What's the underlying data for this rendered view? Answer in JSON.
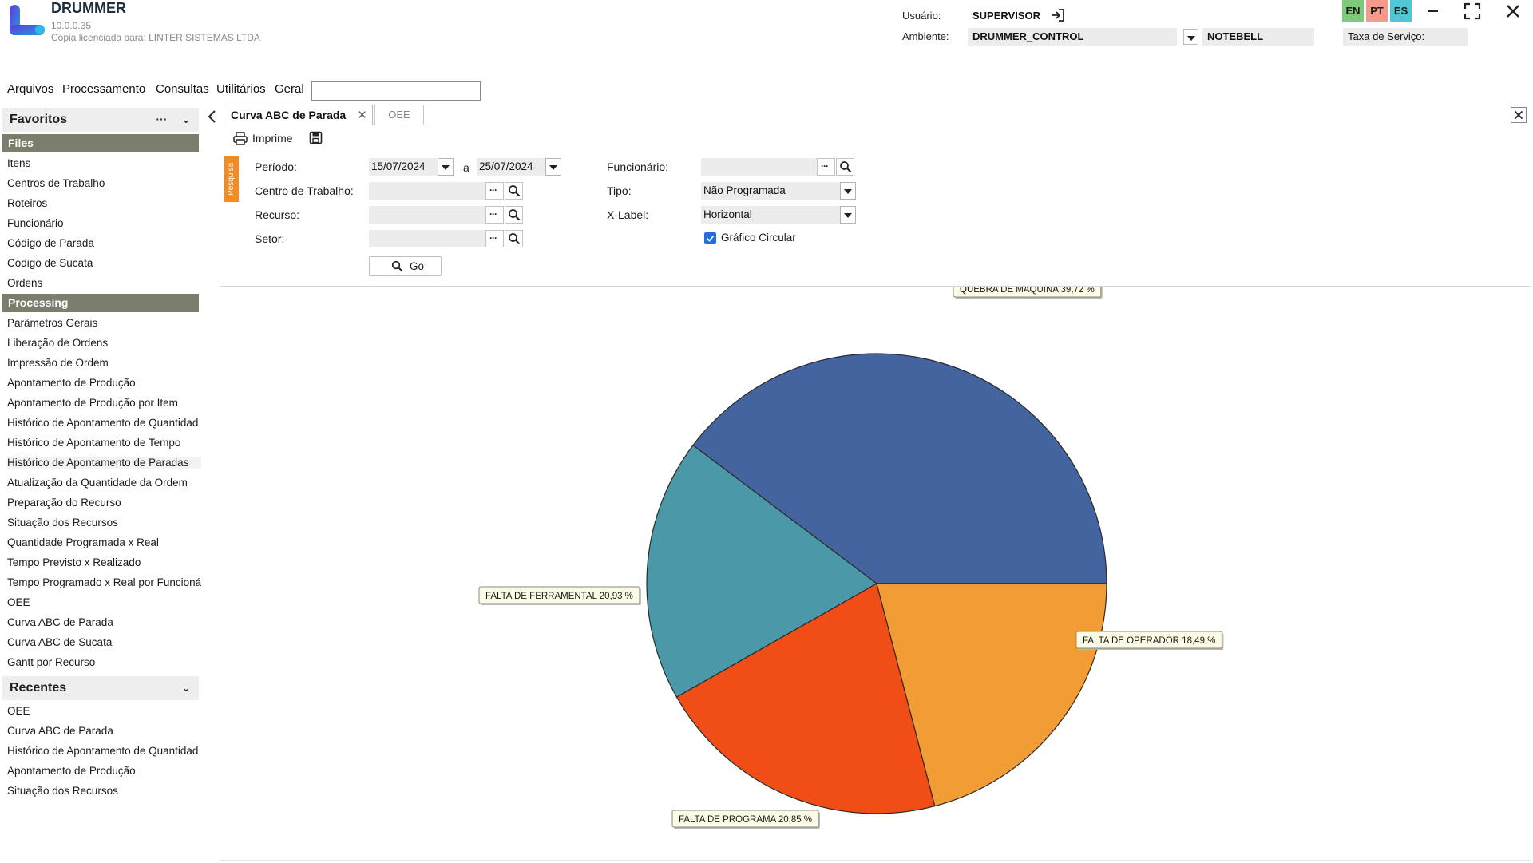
{
  "app": {
    "name": "DRUMMER",
    "version": "10.0.0.35",
    "license": "Cópia licenciada para: LINTER SISTEMAS LTDA"
  },
  "header": {
    "user_label": "Usuário:",
    "user_value": "SUPERVISOR",
    "env_label": "Ambiente:",
    "env_value": "DRUMMER_CONTROL",
    "env_server": "NOTEBELL",
    "service_fee_label": "Taxa de Serviço:",
    "languages": [
      "EN",
      "PT",
      "ES"
    ]
  },
  "menu": {
    "items": [
      "Arquivos",
      "Processamento",
      "Consultas",
      "Utilitários",
      "Geral"
    ],
    "search_value": ""
  },
  "sidebar": {
    "favorites_title": "Favoritos",
    "favorites_more": "···",
    "files_group": "Files",
    "files_items": [
      "Itens",
      "Centros de Trabalho",
      "Roteiros",
      "Funcionário",
      "Código de Parada",
      "Código de Sucata",
      "Ordens"
    ],
    "processing_group": "Processing",
    "processing_items": [
      "Parâmetros Gerais",
      "Liberação de Ordens",
      "Impressão de Ordem",
      "Apontamento de Produção",
      "Apontamento de Produção por Item",
      "Histórico de Apontamento de Quantidad",
      "Histórico de Apontamento de Tempo",
      "Histórico de Apontamento de Paradas",
      "Atualização da Quantidade da Ordem",
      "Preparação do Recurso",
      "Situação dos Recursos",
      "Quantidade Programada x Real",
      "Tempo Previsto x Realizado",
      "Tempo Programado x Real por Funcioná",
      "OEE",
      "Curva ABC de Parada",
      "Curva ABC de Sucata",
      "Gantt por Recurso"
    ],
    "recent_title": "Recentes",
    "recent_items": [
      "OEE",
      "Curva ABC de Parada",
      "Histórico de Apontamento de Quantidad",
      "Apontamento de Produção",
      "Situação dos Recursos"
    ]
  },
  "tabs": [
    {
      "label": "Curva ABC de Parada",
      "active": true
    },
    {
      "label": "OEE",
      "active": false
    }
  ],
  "toolbar": {
    "print_label": "Imprime"
  },
  "filters": {
    "search_tab": "Pesquisa",
    "period_label": "Período:",
    "period_from": "15/07/2024",
    "period_sep": "a",
    "period_to": "25/07/2024",
    "workcenter_label": "Centro de Trabalho:",
    "workcenter_value": "",
    "resource_label": "Recurso:",
    "resource_value": "",
    "sector_label": "Setor:",
    "sector_value": "",
    "employee_label": "Funcionário:",
    "employee_value": "",
    "type_label": "Tipo:",
    "type_value": "Não Programada",
    "xlabel_label": "X-Label:",
    "xlabel_value": "Horizontal",
    "pie_checkbox_label": "Gráfico Circular",
    "pie_checkbox_checked": true,
    "go_label": "Go"
  },
  "chart_data": {
    "type": "pie",
    "categories": [
      "QUEBRA DE MAQUINA",
      "FALTA DE OPERADOR",
      "FALTA DE PROGRAMA",
      "FALTA DE FERRAMENTAL"
    ],
    "values": [
      39.72,
      18.49,
      20.85,
      20.93
    ],
    "labels": [
      "QUEBRA DE MAQUINA 39,72 %",
      "FALTA DE OPERADOR 18,49 %",
      "FALTA DE PROGRAMA 20,85 %",
      "FALTA DE FERRAMENTAL 20,93 %"
    ],
    "colors": [
      "#4464a0",
      "#4b98a8",
      "#f04e16",
      "#f29c36"
    ]
  }
}
